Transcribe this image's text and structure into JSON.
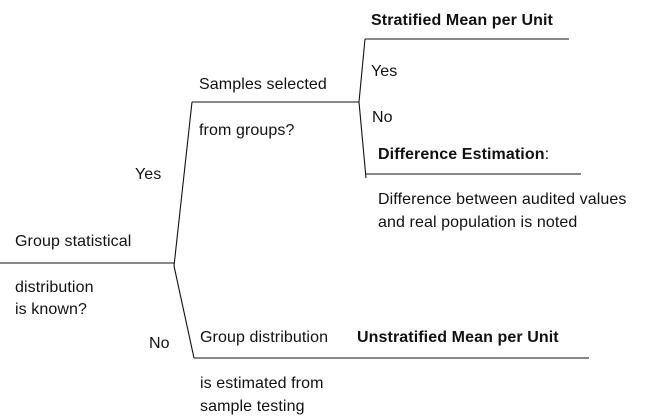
{
  "diagram": {
    "root": {
      "question_line1": "Group statistical",
      "question_line2": "distribution",
      "question_line3": "is known?"
    },
    "branch_yes": {
      "label": "Yes",
      "question_line1": "Samples selected",
      "question_line2": "from groups?",
      "sub_yes": {
        "label": "Yes",
        "result": "Stratified Mean per Unit"
      },
      "sub_no": {
        "label": "No",
        "result_title": "Difference Estimation",
        "result_punct": ":",
        "note_line1": "Difference between audited values",
        "note_line2": "and real population is noted"
      }
    },
    "branch_no": {
      "label": "No",
      "text_line1": "Group distribution",
      "text_line2": "is estimated from",
      "text_line3": "sample testing",
      "result": "Unstratified Mean per Unit"
    }
  }
}
